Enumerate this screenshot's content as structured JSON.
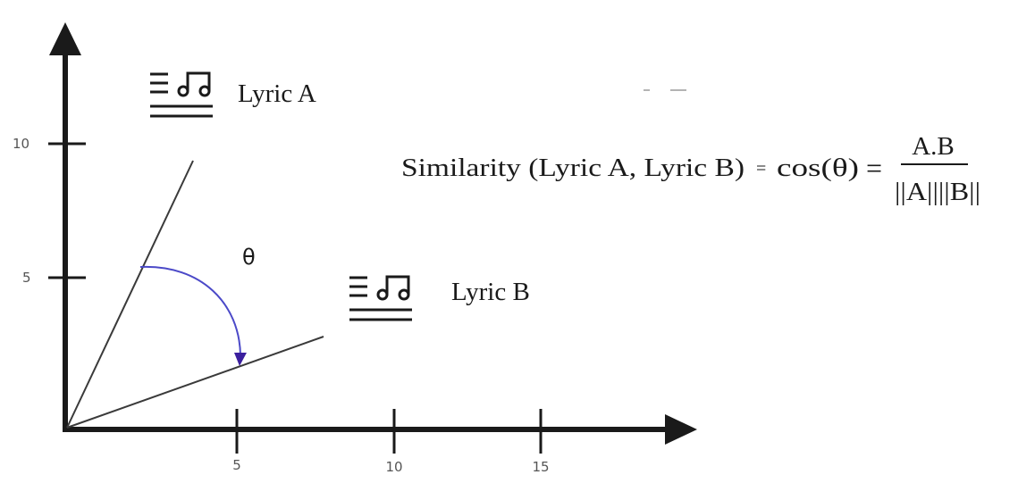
{
  "axes": {
    "x_ticks": [
      "5",
      "10",
      "15"
    ],
    "y_ticks": [
      "10",
      "5"
    ]
  },
  "vectors": {
    "a_label": "Lyric A",
    "b_label": "Lyric B",
    "icon": "lyrics-music-icon",
    "angle_label": "θ"
  },
  "formula": {
    "lhs": "Similarity (Lyric A, Lyric B)",
    "eq1": "=",
    "cos": "cos(θ)",
    "eq2": "=",
    "numerator": "A.B",
    "denominator": "||A||||B||"
  },
  "colors": {
    "axis": "#1a1a1a",
    "vector": "#3a3a3a",
    "arc": "#4b49c8",
    "arrowhead": "#3b1f9e"
  }
}
